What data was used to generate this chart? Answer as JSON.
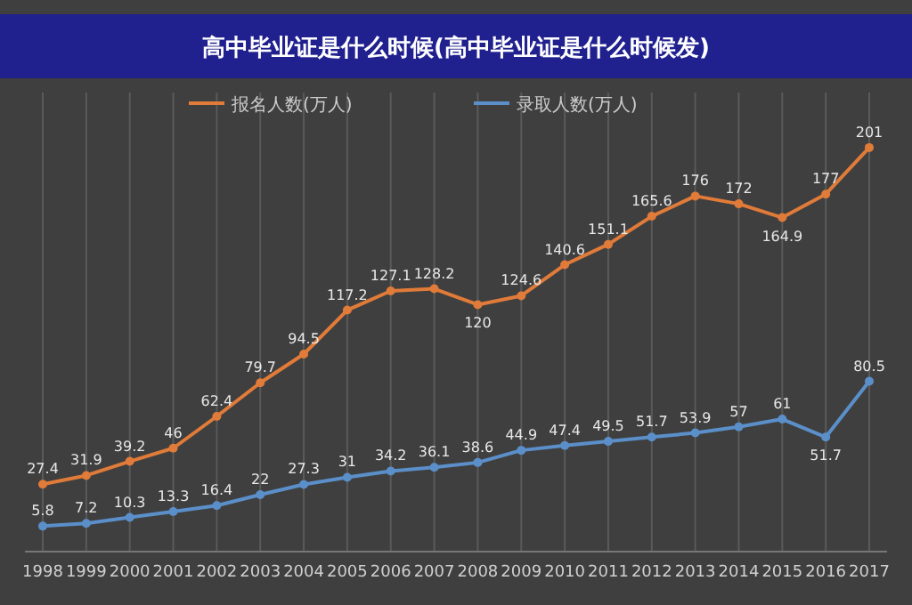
{
  "chart_data": {
    "type": "line",
    "title": "高中毕业证是什么时候(高中毕业证是什么时候发)",
    "categories": [
      "1998",
      "1999",
      "2000",
      "2001",
      "2002",
      "2003",
      "2004",
      "2005",
      "2006",
      "2007",
      "2008",
      "2009",
      "2010",
      "2011",
      "2012",
      "2013",
      "2014",
      "2015",
      "2016",
      "2017"
    ],
    "series": [
      {
        "name": "报名人数(万人)",
        "color": "#e07b39",
        "values": [
          27.4,
          31.9,
          39.2,
          46,
          62.4,
          79.7,
          94.5,
          117.2,
          127.1,
          128.2,
          120,
          124.6,
          140.6,
          151.1,
          165.6,
          176,
          172,
          164.9,
          177,
          201
        ]
      },
      {
        "name": "录取人数(万人)",
        "color": "#5b8fc9",
        "values": [
          5.8,
          7.2,
          10.3,
          13.3,
          16.4,
          22,
          27.3,
          31,
          34.2,
          36.1,
          38.6,
          44.9,
          47.4,
          49.5,
          51.7,
          53.9,
          57,
          61,
          51.7,
          80.5
        ]
      }
    ],
    "data_labels": true,
    "grid": "x",
    "legend": "top",
    "marker": "circle",
    "line_style": "solid"
  }
}
